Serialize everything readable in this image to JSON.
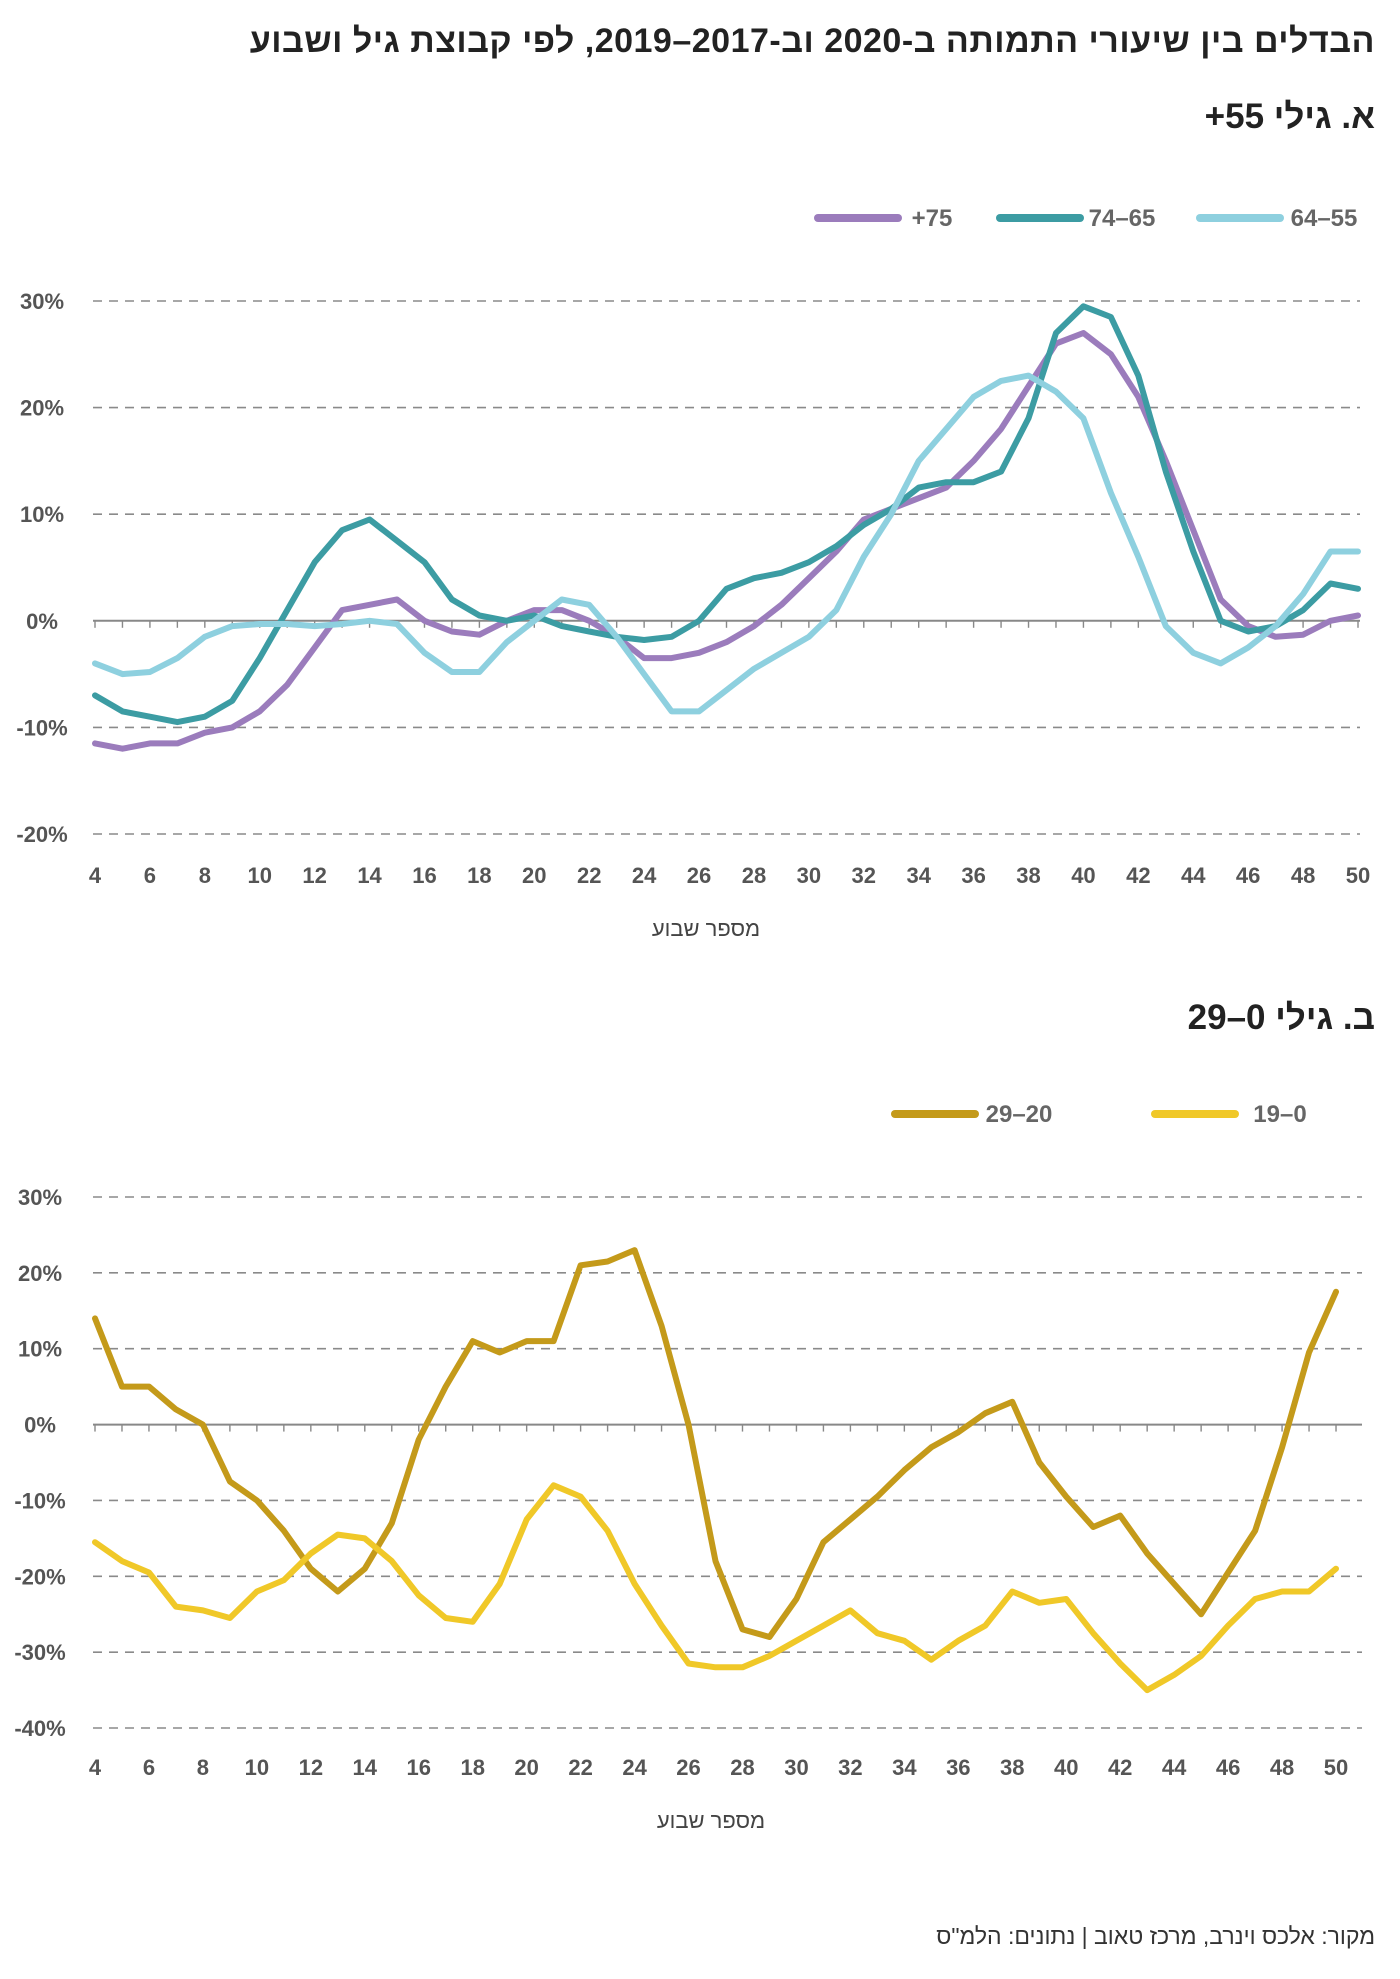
{
  "title": "הבדלים בין שיעורי התמותה ב-2020 וב-2017–2019, לפי קבוצת גיל ושבוע",
  "source": "מקור: אלכס וינרב, מרכז טאוב | נתונים: הלמ\"ס",
  "colors": {
    "purple": "#9b7cbc",
    "teal": "#3c9ca3",
    "lightblue": "#8ed0df",
    "darkgold": "#c49a1a",
    "yellow": "#f0c828",
    "grid": "#888888"
  },
  "chart_data": [
    {
      "type": "line",
      "title": "א. גילי 55+",
      "xlabel": "מספר שבוע",
      "ylabel": "",
      "xlim": [
        4,
        50
      ],
      "ylim": [
        -20,
        30
      ],
      "yticks": [
        30,
        20,
        10,
        0,
        -10,
        -20
      ],
      "ytick_labels": [
        "30%",
        "20%",
        "10%",
        "0%",
        "-10%",
        "-20%"
      ],
      "xticks": [
        4,
        6,
        8,
        10,
        12,
        14,
        16,
        18,
        20,
        22,
        24,
        26,
        28,
        30,
        32,
        34,
        36,
        38,
        40,
        42,
        44,
        46,
        48,
        50
      ],
      "legend_position": "top-right",
      "x": [
        4,
        5,
        6,
        7,
        8,
        9,
        10,
        11,
        12,
        13,
        14,
        15,
        16,
        17,
        18,
        19,
        20,
        21,
        22,
        23,
        24,
        25,
        26,
        27,
        28,
        29,
        30,
        31,
        32,
        33,
        34,
        35,
        36,
        37,
        38,
        39,
        40,
        41,
        42,
        43,
        44,
        45,
        46,
        47,
        48,
        49,
        50
      ],
      "series": [
        {
          "name": "+75",
          "color": "#9b7cbc",
          "values": [
            -11.5,
            -12,
            -11.5,
            -11.5,
            -10.5,
            -10,
            -8.5,
            -6,
            -2.5,
            1,
            1.5,
            2,
            0,
            -1,
            -1.3,
            0,
            1,
            1,
            0,
            -1.5,
            -3.5,
            -3.5,
            -3,
            -2,
            -0.5,
            1.5,
            4,
            6.5,
            9.5,
            10.5,
            11.5,
            12.5,
            15,
            18,
            22,
            26,
            27,
            25,
            21,
            15,
            8.5,
            2,
            -0.5,
            -1.5,
            -1.3,
            0,
            0.5
          ]
        },
        {
          "name": "74–65",
          "color": "#3c9ca3",
          "values": [
            -7,
            -8.5,
            -9,
            -9.5,
            -9,
            -7.5,
            -3.5,
            1,
            5.5,
            8.5,
            9.5,
            7.5,
            5.5,
            2,
            0.5,
            0,
            0.5,
            -0.5,
            -1,
            -1.5,
            -1.8,
            -1.5,
            0,
            3,
            4,
            4.5,
            5.5,
            7,
            9,
            10.5,
            12.5,
            13,
            13,
            14,
            19,
            27,
            29.5,
            28.5,
            23,
            14,
            6.5,
            0,
            -1,
            -0.5,
            1,
            3.5,
            3
          ]
        },
        {
          "name": "64–55",
          "color": "#8ed0df",
          "values": [
            -4,
            -5,
            -4.8,
            -3.5,
            -1.5,
            -0.5,
            -0.3,
            -0.3,
            -0.5,
            -0.3,
            0,
            -0.3,
            -3,
            -4.8,
            -4.8,
            -2,
            0,
            2,
            1.5,
            -1.5,
            -5,
            -8.5,
            -8.5,
            -6.5,
            -4.5,
            -3,
            -1.5,
            1,
            6,
            10,
            15,
            18,
            21,
            22.5,
            23,
            21.5,
            19,
            12,
            6,
            -0.5,
            -3,
            -4,
            -2.5,
            -0.5,
            2.5,
            6.5,
            6.5
          ]
        }
      ]
    },
    {
      "type": "line",
      "title": "ב. גילי 0–29",
      "xlabel": "מספר שבוע",
      "ylabel": "",
      "xlim": [
        4,
        51
      ],
      "ylim": [
        -40,
        30
      ],
      "yticks": [
        30,
        20,
        10,
        0,
        -10,
        -20,
        -30,
        -40
      ],
      "ytick_labels": [
        "30%",
        "20%",
        "10%",
        "0%",
        "-10%",
        "-20%",
        "-30%",
        "-40%"
      ],
      "xticks": [
        4,
        6,
        8,
        10,
        12,
        14,
        16,
        18,
        20,
        22,
        24,
        26,
        28,
        30,
        32,
        34,
        36,
        38,
        40,
        42,
        44,
        46,
        48,
        50
      ],
      "legend_position": "top-right",
      "x": [
        4,
        5,
        6,
        7,
        8,
        9,
        10,
        11,
        12,
        13,
        14,
        15,
        16,
        17,
        18,
        19,
        20,
        21,
        22,
        23,
        24,
        25,
        26,
        27,
        28,
        29,
        30,
        31,
        32,
        33,
        34,
        35,
        36,
        37,
        38,
        39,
        40,
        41,
        42,
        43,
        44,
        45,
        46,
        47,
        48,
        49,
        50
      ],
      "series": [
        {
          "name": "29–20",
          "color": "#c49a1a",
          "values": [
            14,
            5,
            5,
            2,
            0,
            -7.5,
            -10,
            -14,
            -19,
            -22,
            -19,
            -13,
            -2,
            5,
            11,
            9.5,
            11,
            11,
            21,
            21.5,
            23,
            13,
            0,
            -18,
            -27,
            -28,
            -23,
            -15.5,
            -12.5,
            -9.5,
            -6,
            -3,
            -1,
            1.5,
            3,
            -5,
            -9.5,
            -13.5,
            -12,
            -17,
            -21,
            -25,
            -19.5,
            -14,
            -3,
            9.5,
            17.5
          ]
        },
        {
          "name": "19–0",
          "color": "#f0c828",
          "values": [
            -15.5,
            -18,
            -19.5,
            -24,
            -24.5,
            -25.5,
            -22,
            -20.5,
            -17,
            -14.5,
            -15,
            -18,
            -22.5,
            -25.5,
            -26,
            -21,
            -12.5,
            -8,
            -9.5,
            -14,
            -21,
            -26.5,
            -31.5,
            -32,
            -32,
            -30.5,
            -28.5,
            -26.5,
            -24.5,
            -27.5,
            -28.5,
            -31,
            -28.5,
            -26.5,
            -22,
            -23.5,
            -23,
            -27.5,
            -31.5,
            -35,
            -33,
            -30.5,
            -26.5,
            -23,
            -22,
            -22,
            -19
          ]
        }
      ]
    }
  ]
}
